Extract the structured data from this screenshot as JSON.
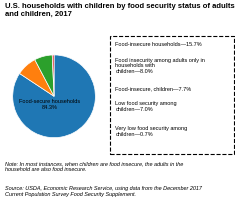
{
  "chart_data": {
    "type": "pie",
    "title": "U.S. households with children by food security status of adults\nand children, 2017",
    "values": [
      84.3,
      8.0,
      7.0,
      0.7
    ],
    "annotations": [
      "Food-secure households\n84.3%",
      "Food-insecure households—15.7%",
      "Food insecurity among adults only in households with\nchildren—8.0%",
      "Food-insecure, children—7.7%",
      "Low food security among\nchildren—7.0%",
      "Very low food security among\nchildren—0.7%",
      "Note: In most instances, when children are food insecure, the adults in the\nhousehold are also food insecure.",
      "Source: USDA, Economic Research Service, using data from the December 2017\nCurrent Population Survey Food Security Supplement."
    ]
  }
}
